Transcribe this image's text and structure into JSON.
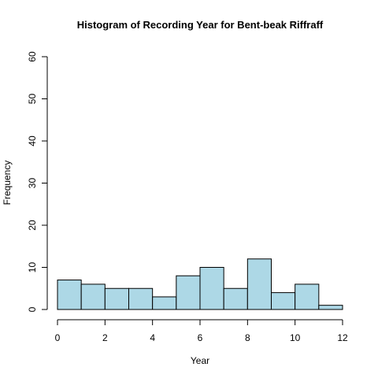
{
  "chart_data": {
    "type": "bar",
    "title": "Histogram of Recording Year for Bent-beak Riffraff",
    "xlabel": "Year",
    "ylabel": "Frequency",
    "bin_edges": [
      0,
      1,
      2,
      3,
      4,
      5,
      6,
      7,
      8,
      9,
      10,
      11,
      12
    ],
    "values": [
      7,
      6,
      5,
      5,
      3,
      8,
      10,
      5,
      12,
      4,
      6,
      1
    ],
    "xlim": [
      0,
      12
    ],
    "ylim": [
      0,
      60
    ],
    "x_ticks": [
      "0",
      "2",
      "4",
      "6",
      "8",
      "10",
      "12"
    ],
    "y_ticks": [
      "0",
      "10",
      "20",
      "30",
      "40",
      "50",
      "60"
    ],
    "bar_color": "#ADD8E6",
    "grid": false
  }
}
